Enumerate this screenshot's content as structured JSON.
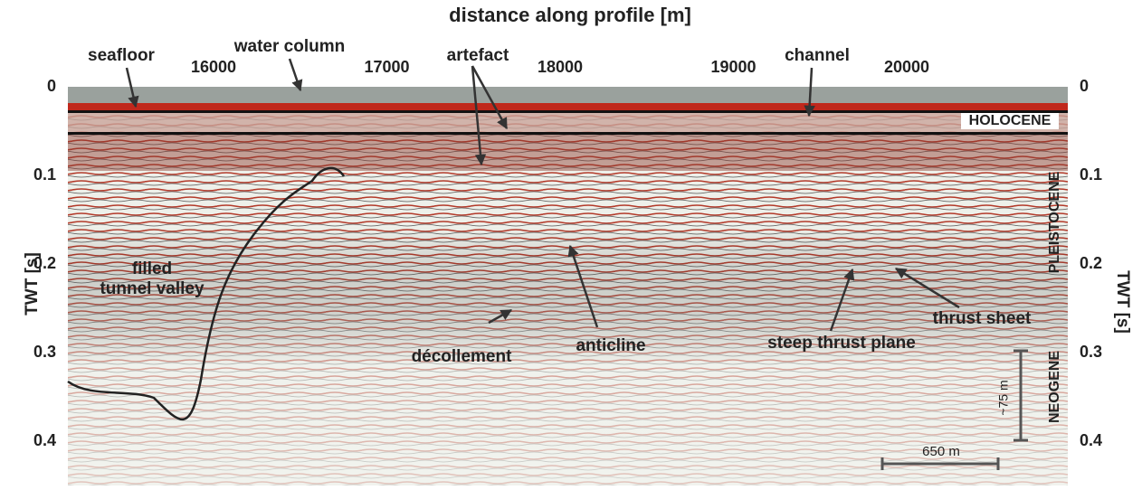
{
  "title": "distance along profile [m]",
  "x_axis": {
    "ticks": [
      16000,
      17000,
      18000,
      19000,
      20000
    ]
  },
  "y_axis": {
    "label_left": "TWT [s]",
    "label_right": "TWT [s]",
    "ticks": [
      0,
      0.1,
      0.2,
      0.3,
      0.4
    ]
  },
  "annotations": {
    "seafloor": "seafloor",
    "water_column": "water column",
    "artefact": "artefact",
    "channel": "channel",
    "holocene": "HOLOCENE",
    "pleistocene": "PLEISTOCENE",
    "neogene": "NEOGENE",
    "tunnel_valley_1": "filled",
    "tunnel_valley_2": "tunnel valley",
    "decollement": "décollement",
    "anticline": "anticline",
    "steep_thrust_plane": "steep thrust plane",
    "thrust_sheet": "thrust sheet"
  },
  "scale_bars": {
    "horizontal": "650 m",
    "vertical": "~75 m"
  }
}
